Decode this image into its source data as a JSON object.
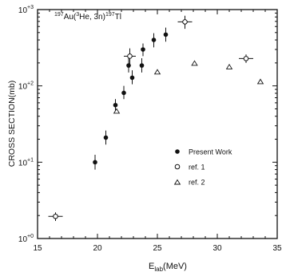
{
  "chart_data": {
    "type": "scatter",
    "title": "¹⁹⁷Au(³He,3n)¹⁹⁷Tl",
    "title_parts": {
      "a": "197",
      "b": "Au(",
      "c": "3",
      "d": "He, 3n)",
      "e": "197",
      "f": "Tl"
    },
    "xlabel": {
      "main": "E",
      "sub": "lab",
      "rest": "(MeV)"
    },
    "ylabel": "CROSS SECTION(mb)",
    "xlim": [
      15,
      35
    ],
    "ylim_log10": [
      0,
      3
    ],
    "y_scale": "log",
    "x_ticks": [
      "15",
      "20",
      "25",
      "30",
      "35"
    ],
    "y_ticks": [
      {
        "base": "10",
        "exp": "+0",
        "value": 1
      },
      {
        "base": "10",
        "exp": "+1",
        "value": 10
      },
      {
        "base": "10",
        "exp": "+2",
        "value": 100
      },
      {
        "base": "10",
        "exp": "+3",
        "value": 1000
      }
    ],
    "legend_position": "center-right",
    "grid": false,
    "series": [
      {
        "name": "Present Work",
        "marker": "filled-circle",
        "points": [
          {
            "x": 19.8,
            "y": 10,
            "err_lo": 8,
            "err_hi": 12.5
          },
          {
            "x": 20.7,
            "y": 21,
            "err_lo": 17,
            "err_hi": 26
          },
          {
            "x": 21.5,
            "y": 56,
            "err_lo": 46,
            "err_hi": 67
          },
          {
            "x": 22.2,
            "y": 81,
            "err_lo": 67,
            "err_hi": 100
          },
          {
            "x": 22.6,
            "y": 185,
            "err_lo": 150,
            "err_hi": 230
          },
          {
            "x": 22.9,
            "y": 128,
            "err_lo": 105,
            "err_hi": 160
          },
          {
            "x": 23.7,
            "y": 185,
            "err_lo": 150,
            "err_hi": 230
          },
          {
            "x": 23.8,
            "y": 300,
            "err_lo": 245,
            "err_hi": 360
          },
          {
            "x": 24.7,
            "y": 400,
            "err_lo": 320,
            "err_hi": 490
          },
          {
            "x": 25.7,
            "y": 470,
            "err_lo": 380,
            "err_hi": 580
          }
        ]
      },
      {
        "name": "ref. 1",
        "marker": "open-circle",
        "points": [
          {
            "x": 16.5,
            "y": 1.95,
            "err_lo": 1.7,
            "err_hi": 2.2,
            "xerr": 0.6
          },
          {
            "x": 22.7,
            "y": 245,
            "err_lo": 185,
            "err_hi": 310,
            "xerr": 0.5
          },
          {
            "x": 27.3,
            "y": 690,
            "err_lo": 560,
            "err_hi": 830,
            "xerr": 0.6
          },
          {
            "x": 32.4,
            "y": 228,
            "err_lo": 200,
            "err_hi": 258,
            "xerr": 0.6
          }
        ]
      },
      {
        "name": "ref. 2",
        "marker": "open-triangle",
        "points": [
          {
            "x": 21.6,
            "y": 46
          },
          {
            "x": 25.0,
            "y": 150
          },
          {
            "x": 28.1,
            "y": 195
          },
          {
            "x": 31.0,
            "y": 175
          },
          {
            "x": 33.6,
            "y": 112
          }
        ]
      }
    ],
    "legend": [
      {
        "marker": "filled-circle",
        "label": "Present Work"
      },
      {
        "marker": "open-circle",
        "label": "ref. 1"
      },
      {
        "marker": "open-triangle",
        "label": "ref. 2"
      }
    ]
  }
}
